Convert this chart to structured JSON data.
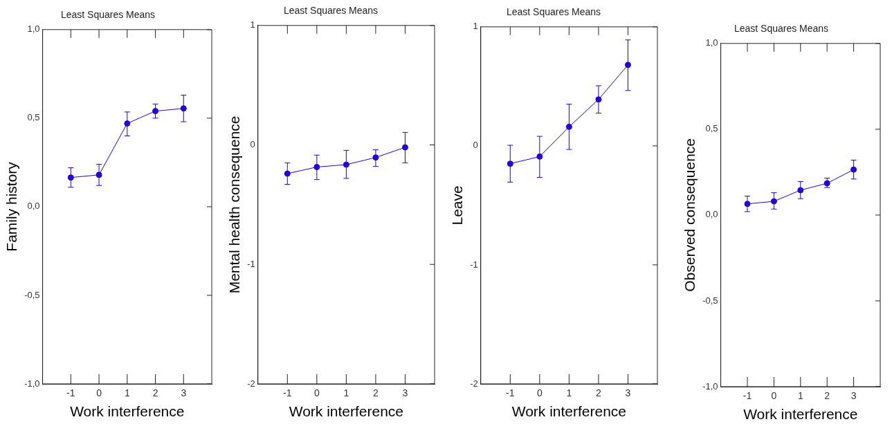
{
  "chart_data": [
    {
      "type": "line",
      "title": "Least Squares Means",
      "xlabel": "Work interference",
      "ylabel": "Family history",
      "x": [
        -1,
        0,
        1,
        2,
        3
      ],
      "xlim": [
        -2,
        4
      ],
      "xticks": [
        -1,
        0,
        1,
        2,
        3
      ],
      "ylim": [
        -1,
        1
      ],
      "yticks": [
        {
          "value": -1,
          "label": "-1,0"
        },
        {
          "value": -0.5,
          "label": "-0,5"
        },
        {
          "value": 0,
          "label": "0,0"
        },
        {
          "value": 0.5,
          "label": "0,5"
        },
        {
          "value": 1,
          "label": "1,0"
        }
      ],
      "marker": "circle",
      "series": [
        {
          "color": "#2200e0",
          "values": [
            0.165,
            0.18,
            0.47,
            0.54,
            0.555
          ],
          "errors": [
            [
              0.11,
              0.22
            ],
            [
              0.12,
              0.24
            ],
            [
              0.4,
              0.535
            ],
            [
              0.5,
              0.58
            ],
            [
              0.48,
              0.63
            ]
          ]
        }
      ]
    },
    {
      "type": "line",
      "title": "Least Squares Means",
      "xlabel": "Work interference",
      "ylabel": "Mental health consequence",
      "x": [
        -1,
        0,
        1,
        2,
        3
      ],
      "xlim": [
        -2,
        4
      ],
      "xticks": [
        -1,
        0,
        1,
        2,
        3
      ],
      "ylim": [
        -2,
        1
      ],
      "yticks": [
        -2,
        -1,
        0,
        1
      ],
      "marker": "circle",
      "series": [
        {
          "color": "#2200e0",
          "values": [
            -0.24,
            -0.185,
            -0.165,
            -0.105,
            -0.02
          ],
          "errors": [
            [
              -0.33,
              -0.15
            ],
            [
              -0.29,
              -0.085
            ],
            [
              -0.28,
              -0.045
            ],
            [
              -0.18,
              -0.04
            ],
            [
              -0.15,
              0.105
            ]
          ]
        }
      ]
    },
    {
      "type": "line",
      "title": "Least Squares Means",
      "xlabel": "Work interference",
      "ylabel": "Leave",
      "x": [
        -1,
        0,
        1,
        2,
        3
      ],
      "xlim": [
        -2,
        4
      ],
      "xticks": [
        -1,
        0,
        1,
        2,
        3
      ],
      "ylim": [
        -2,
        1
      ],
      "yticks": [
        -2,
        -1,
        0,
        1
      ],
      "marker": "circle",
      "series": [
        {
          "color": "#2200e0",
          "values": [
            -0.15,
            -0.09,
            0.16,
            0.39,
            0.68
          ],
          "errors": [
            [
              -0.305,
              0.005
            ],
            [
              -0.265,
              0.08
            ],
            [
              -0.03,
              0.35
            ],
            [
              0.275,
              0.505
            ],
            [
              0.465,
              0.89
            ]
          ]
        }
      ]
    },
    {
      "type": "line",
      "title": "Least Squares Means",
      "xlabel": "Work interference",
      "ylabel": "Observed consequence",
      "x": [
        -1,
        0,
        1,
        2,
        3
      ],
      "xlim": [
        -2,
        4
      ],
      "xticks": [
        -1,
        0,
        1,
        2,
        3
      ],
      "ylim": [
        -1,
        1
      ],
      "yticks": [
        {
          "value": -1,
          "label": "-1,0"
        },
        {
          "value": -0.5,
          "label": "-0,5"
        },
        {
          "value": 0,
          "label": "0,0"
        },
        {
          "value": 0.5,
          "label": "0,5"
        },
        {
          "value": 1,
          "label": "1,0"
        }
      ],
      "marker": "circle",
      "series": [
        {
          "color": "#2200e0",
          "values": [
            0.065,
            0.08,
            0.145,
            0.185,
            0.265
          ],
          "errors": [
            [
              0.02,
              0.11
            ],
            [
              0.035,
              0.13
            ],
            [
              0.095,
              0.195
            ],
            [
              0.16,
              0.215
            ],
            [
              0.21,
              0.32
            ]
          ]
        }
      ]
    }
  ]
}
